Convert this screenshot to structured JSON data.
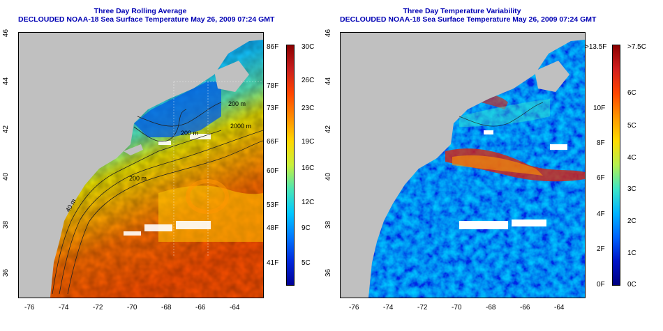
{
  "left_panel": {
    "title_line1": "Three Day Rolling Average",
    "title_line2": "DECLOUDED NOAA-18 Sea Surface Temperature May 26, 2009 07:24 GMT",
    "x_ticks": [
      "-76",
      "-74",
      "-72",
      "-70",
      "-68",
      "-66",
      "-64"
    ],
    "y_ticks": [
      "36",
      "38",
      "40",
      "42",
      "44",
      "46"
    ],
    "contour_labels": [
      "200 m",
      "2000 m",
      "200 m",
      "40 m",
      "200 m"
    ],
    "colorbar": {
      "left_labels": [
        "86F",
        "78F",
        "73F",
        "66F",
        "60F",
        "53F",
        "48F",
        "41F"
      ],
      "right_labels": [
        "30C",
        "26C",
        "23C",
        "19C",
        "16C",
        "12C",
        "9C",
        "5C"
      ],
      "colors": [
        "#8b0000",
        "#c81e1e",
        "#ff4500",
        "#ff8c00",
        "#ffd700",
        "#c8f03c",
        "#4be6b4",
        "#00c8ff",
        "#0078ff",
        "#0028dc",
        "#000096"
      ]
    }
  },
  "right_panel": {
    "title_line1": "Three Day Temperature Variability",
    "title_line2": "DECLOUDED NOAA-18 Sea Surface Temperature May 26, 2009 07:24 GMT",
    "x_ticks": [
      "-76",
      "-74",
      "-72",
      "-70",
      "-68",
      "-66",
      "-64"
    ],
    "y_ticks": [
      "36",
      "38",
      "40",
      "42",
      "44",
      "46"
    ],
    "colorbar": {
      "left_labels": [
        ">13.5F",
        "10F",
        "8F",
        "6F",
        "4F",
        "2F",
        "0F"
      ],
      "right_labels": [
        ">7.5C",
        "6C",
        "5C",
        "4C",
        "3C",
        "2C",
        "1C",
        "0C"
      ],
      "colors": [
        "#8b0000",
        "#d21e1e",
        "#ff4500",
        "#ff9600",
        "#ffdc00",
        "#b4f050",
        "#3ce6c8",
        "#00b4ff",
        "#0064ff",
        "#0014c8",
        "#000082"
      ]
    }
  },
  "colors": {
    "land": "#c0c0c0",
    "title": "#0000b4",
    "cloud": "#ffffff"
  }
}
